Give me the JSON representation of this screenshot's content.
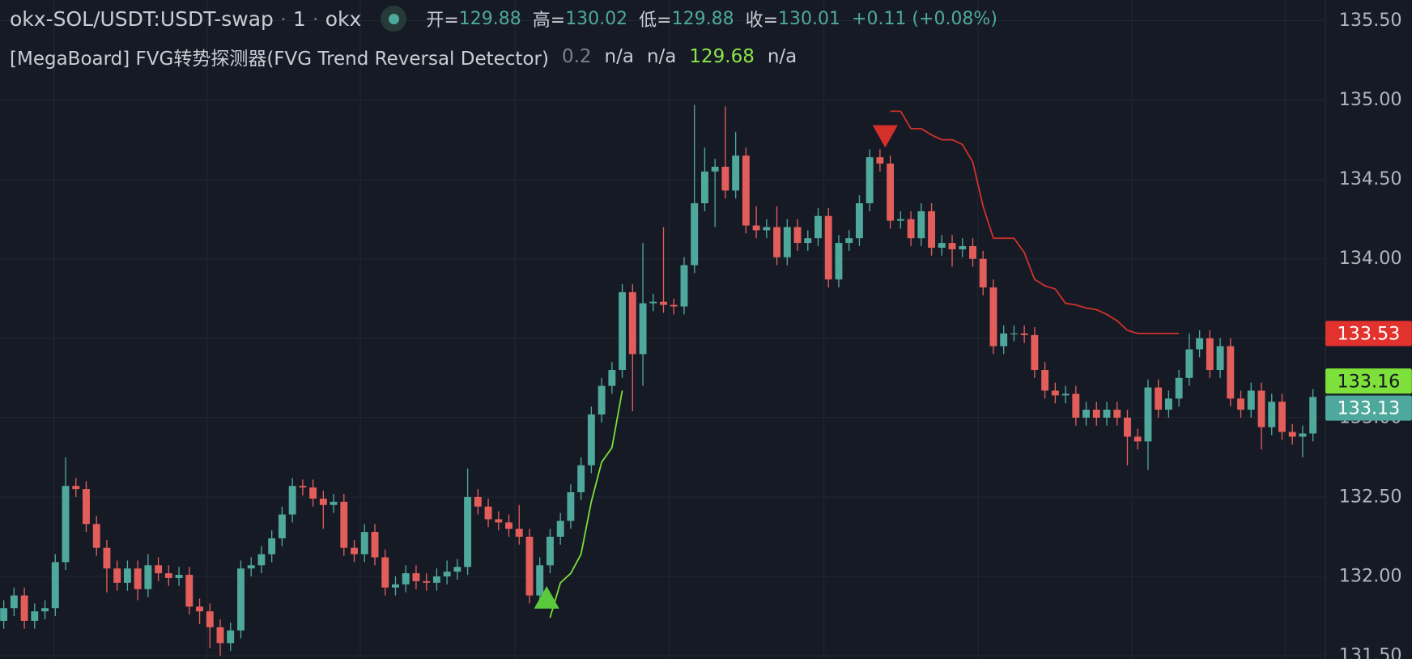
{
  "header": {
    "symbol": "okx-SOL/USDT:USDT-swap",
    "interval": "1",
    "exchange": "okx",
    "ohlc": [
      {
        "label": "开=",
        "value": 129.88
      },
      {
        "label": "高=",
        "value": 130.02
      },
      {
        "label": "低=",
        "value": 129.88
      },
      {
        "label": "收=",
        "value": 130.01
      }
    ],
    "change": "+0.11 (+0.08%)"
  },
  "indicator": {
    "name": "[MegaBoard] FVG转势探测器(FVG Trend Reversal Detector)",
    "values": [
      0.2,
      "n/a",
      "n/a",
      129.68,
      "n/a"
    ]
  },
  "chart_data": {
    "type": "candlestick",
    "up_color": "#4ea99c",
    "down_color": "#e35d5a",
    "grid": true,
    "ylim": [
      131.48,
      135.63
    ],
    "yticks": [
      {
        "value": 131.5,
        "label": "131.50"
      },
      {
        "value": 132,
        "label": "132.00"
      },
      {
        "value": 132.5,
        "label": "132.50"
      },
      {
        "value": 133,
        "label": "133.00"
      },
      {
        "value": 133.5,
        "label": "133.50"
      },
      {
        "value": 134,
        "label": "134.00"
      },
      {
        "value": 134.5,
        "label": "134.50"
      },
      {
        "value": 135,
        "label": "135.00"
      },
      {
        "value": 135.5,
        "label": "135.50"
      }
    ],
    "open": [
      131.72,
      131.8,
      131.88,
      131.72,
      131.78,
      131.8,
      132.09,
      132.57,
      132.55,
      132.33,
      132.18,
      132.05,
      131.96,
      132.05,
      131.92,
      132.07,
      132.02,
      131.99,
      132.01,
      131.81,
      131.78,
      131.68,
      131.58,
      131.66,
      132.05,
      132.07,
      132.14,
      132.24,
      132.39,
      132.57,
      132.56,
      132.49,
      132.45,
      132.47,
      132.18,
      132.14,
      132.28,
      132.12,
      131.93,
      131.95,
      132.02,
      131.97,
      131.96,
      132.0,
      132.03,
      132.06,
      132.5,
      132.44,
      132.36,
      132.34,
      132.3,
      132.25,
      131.88,
      132.07,
      132.25,
      132.35,
      132.53,
      132.7,
      133.02,
      133.2,
      133.3,
      133.79,
      133.4,
      133.72,
      133.73,
      133.71,
      133.7,
      133.96,
      134.35,
      134.55,
      134.58,
      134.43,
      134.65,
      134.21,
      134.18,
      134.2,
      134.01,
      134.2,
      134.1,
      134.13,
      134.27,
      133.87,
      134.1,
      134.13,
      134.35,
      134.64,
      134.6,
      134.24,
      134.25,
      134.13,
      134.3,
      134.07,
      134.1,
      134.06,
      134.08,
      134.0,
      133.82,
      133.45,
      133.53,
      133.53,
      133.52,
      133.3,
      133.17,
      133.14,
      133.15,
      133.0,
      133.05,
      133.0,
      133.05,
      133.0,
      132.88,
      132.85,
      133.19,
      133.05,
      133.12,
      133.25,
      133.43,
      133.5,
      133.3,
      133.45,
      133.12,
      133.05,
      133.17,
      132.94,
      133.1,
      132.91,
      132.88,
      132.9
    ],
    "high": [
      131.85,
      131.93,
      131.93,
      131.83,
      131.85,
      132.14,
      132.75,
      132.62,
      132.6,
      132.38,
      132.23,
      132.1,
      132.1,
      132.1,
      132.14,
      132.12,
      132.07,
      132.06,
      132.06,
      131.86,
      131.83,
      131.73,
      131.71,
      132.1,
      132.12,
      132.19,
      132.29,
      132.44,
      132.62,
      132.61,
      132.61,
      132.54,
      132.52,
      132.52,
      132.23,
      132.33,
      132.33,
      132.17,
      132.0,
      132.07,
      132.07,
      132.02,
      132.05,
      132.1,
      132.11,
      132.68,
      132.55,
      132.49,
      132.41,
      132.39,
      132.45,
      132.3,
      132.12,
      132.3,
      132.4,
      132.58,
      132.75,
      133.07,
      133.25,
      133.35,
      133.84,
      133.84,
      134.1,
      133.78,
      134.2,
      133.75,
      134.01,
      134.97,
      134.7,
      134.63,
      134.96,
      134.8,
      134.7,
      134.33,
      134.25,
      134.33,
      134.25,
      134.25,
      134.18,
      134.32,
      134.32,
      134.15,
      134.18,
      134.4,
      134.69,
      134.69,
      134.65,
      134.3,
      134.3,
      134.35,
      134.35,
      134.15,
      134.15,
      134.13,
      134.13,
      134.05,
      133.87,
      133.58,
      133.58,
      133.58,
      133.57,
      133.35,
      133.22,
      133.2,
      133.2,
      133.1,
      133.1,
      133.1,
      133.1,
      133.05,
      132.93,
      133.24,
      133.24,
      133.17,
      133.3,
      133.53,
      133.55,
      133.55,
      133.5,
      133.5,
      133.17,
      133.22,
      133.22,
      133.15,
      133.15,
      132.96,
      132.95,
      133.18
    ],
    "low": [
      131.67,
      131.75,
      131.67,
      131.67,
      131.73,
      131.75,
      132.04,
      132.5,
      132.28,
      132.13,
      131.9,
      131.91,
      131.91,
      131.85,
      131.87,
      131.97,
      131.94,
      131.94,
      131.76,
      131.7,
      131.55,
      131.5,
      131.53,
      131.61,
      132.0,
      132.02,
      132.09,
      132.19,
      132.34,
      132.51,
      132.44,
      132.3,
      132.4,
      132.13,
      132.09,
      132.09,
      132.07,
      131.88,
      131.88,
      131.9,
      131.92,
      131.91,
      131.91,
      131.95,
      131.98,
      132.01,
      132.39,
      132.31,
      132.29,
      132.25,
      132.2,
      131.83,
      131.83,
      132.02,
      132.2,
      132.3,
      132.48,
      132.65,
      132.97,
      133.15,
      133.25,
      133.04,
      133.2,
      133.67,
      133.66,
      133.65,
      133.65,
      133.91,
      134.3,
      134.2,
      134.38,
      134.38,
      134.16,
      134.13,
      134.13,
      133.96,
      133.96,
      134.05,
      134.05,
      134.08,
      133.82,
      133.82,
      134.05,
      134.08,
      134.3,
      134.55,
      134.19,
      134.19,
      134.08,
      134.08,
      134.02,
      134.02,
      133.95,
      134.01,
      133.95,
      133.77,
      133.4,
      133.4,
      133.48,
      133.47,
      133.25,
      133.12,
      133.09,
      133.09,
      132.95,
      132.95,
      132.95,
      132.95,
      132.95,
      132.7,
      132.8,
      132.67,
      133.0,
      133.0,
      133.07,
      133.2,
      133.38,
      133.25,
      133.25,
      133.07,
      133.0,
      133.0,
      132.8,
      132.89,
      132.86,
      132.83,
      132.75,
      132.85
    ],
    "close": [
      131.8,
      131.88,
      131.72,
      131.78,
      131.8,
      132.09,
      132.57,
      132.55,
      132.33,
      132.18,
      132.05,
      131.96,
      132.05,
      131.92,
      132.07,
      132.02,
      131.99,
      132.01,
      131.81,
      131.78,
      131.68,
      131.58,
      131.66,
      132.05,
      132.07,
      132.14,
      132.24,
      132.39,
      132.57,
      132.56,
      132.49,
      132.45,
      132.47,
      132.18,
      132.14,
      132.28,
      132.12,
      131.93,
      131.95,
      132.02,
      131.97,
      131.96,
      132.0,
      132.03,
      132.06,
      132.5,
      132.44,
      132.36,
      132.34,
      132.3,
      132.25,
      131.88,
      132.07,
      132.25,
      132.35,
      132.53,
      132.7,
      133.02,
      133.2,
      133.3,
      133.79,
      133.4,
      133.72,
      133.73,
      133.71,
      133.7,
      133.96,
      134.35,
      134.55,
      134.58,
      134.43,
      134.65,
      134.21,
      134.18,
      134.2,
      134.01,
      134.2,
      134.1,
      134.13,
      134.27,
      133.87,
      134.1,
      134.13,
      134.35,
      134.64,
      134.6,
      134.24,
      134.25,
      134.13,
      134.3,
      134.07,
      134.1,
      134.06,
      134.08,
      134.0,
      133.82,
      133.45,
      133.53,
      133.53,
      133.52,
      133.3,
      133.17,
      133.14,
      133.15,
      133.0,
      133.05,
      133.0,
      133.05,
      133.0,
      132.88,
      132.85,
      133.19,
      133.05,
      133.12,
      133.25,
      133.43,
      133.5,
      133.3,
      133.45,
      133.12,
      133.05,
      133.17,
      132.94,
      133.1,
      132.91,
      132.88,
      132.9,
      133.13
    ],
    "lines": [
      {
        "color": "#7ee03a",
        "values": [
          null,
          null,
          null,
          null,
          null,
          null,
          null,
          null,
          null,
          null,
          null,
          null,
          null,
          null,
          null,
          null,
          null,
          null,
          null,
          null,
          null,
          null,
          null,
          null,
          null,
          null,
          null,
          null,
          null,
          null,
          null,
          null,
          null,
          null,
          null,
          null,
          null,
          null,
          null,
          null,
          null,
          null,
          null,
          null,
          null,
          null,
          null,
          null,
          null,
          null,
          null,
          null,
          null,
          131.74,
          131.96,
          132.02,
          132.14,
          132.47,
          132.72,
          132.81,
          133.17,
          null,
          null,
          null,
          null,
          null,
          null,
          null,
          null,
          null,
          null,
          null,
          null,
          null,
          null,
          null,
          null,
          null,
          null,
          null,
          null,
          null,
          null,
          null,
          null,
          null,
          null,
          null,
          null,
          null,
          null,
          null,
          null,
          null,
          null,
          null,
          null,
          null,
          null,
          null,
          null,
          null,
          null,
          null,
          null,
          null,
          null,
          null,
          null,
          null,
          null,
          null,
          null,
          null,
          null,
          null,
          null,
          null,
          null,
          null,
          null,
          null,
          null,
          null,
          null,
          null,
          null,
          null,
          null,
          null
        ]
      },
      {
        "color": "#d2322d",
        "values": [
          null,
          null,
          null,
          null,
          null,
          null,
          null,
          null,
          null,
          null,
          null,
          null,
          null,
          null,
          null,
          null,
          null,
          null,
          null,
          null,
          null,
          null,
          null,
          null,
          null,
          null,
          null,
          null,
          null,
          null,
          null,
          null,
          null,
          null,
          null,
          null,
          null,
          null,
          null,
          null,
          null,
          null,
          null,
          null,
          null,
          null,
          null,
          null,
          null,
          null,
          null,
          null,
          null,
          null,
          null,
          null,
          null,
          null,
          null,
          null,
          null,
          null,
          null,
          null,
          null,
          null,
          null,
          null,
          null,
          null,
          null,
          null,
          null,
          null,
          null,
          null,
          null,
          null,
          null,
          null,
          null,
          null,
          null,
          null,
          null,
          null,
          134.93,
          134.93,
          134.82,
          134.82,
          134.78,
          134.75,
          134.75,
          134.72,
          134.61,
          134.33,
          134.13,
          134.13,
          134.13,
          134.04,
          133.87,
          133.83,
          133.81,
          133.72,
          133.71,
          133.69,
          133.68,
          133.65,
          133.61,
          133.55,
          133.53,
          133.53,
          133.53,
          133.53,
          133.53,
          null,
          null,
          null,
          null,
          null,
          null,
          null,
          null,
          null,
          null,
          null,
          null,
          null
        ]
      }
    ],
    "price_labels": [
      {
        "value": 133.53,
        "color": "#e2322d",
        "text_color": "#ffffff"
      },
      {
        "value": 133.16,
        "color": "#7ee03a",
        "text_color": "#131722"
      },
      {
        "value": 133.13,
        "color": "#4ea99c",
        "text_color": "#ffffff"
      }
    ]
  }
}
